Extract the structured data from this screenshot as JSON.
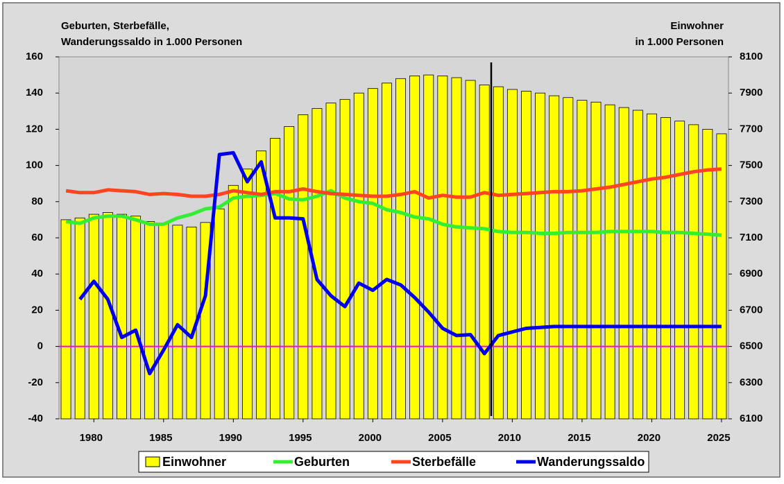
{
  "chart_data": {
    "type": "bar_line",
    "y_label": [
      "Geburten, Sterbefälle,",
      "Wanderungssaldo in 1.000 Personen"
    ],
    "y2_label": [
      "Einwohner",
      "in 1.000 Personen"
    ],
    "x": [
      1978,
      1979,
      1980,
      1981,
      1982,
      1983,
      1984,
      1985,
      1986,
      1987,
      1988,
      1989,
      1990,
      1991,
      1992,
      1993,
      1994,
      1995,
      1996,
      1997,
      1998,
      1999,
      2000,
      2001,
      2002,
      2003,
      2004,
      2005,
      2006,
      2007,
      2008,
      2009,
      2010,
      2011,
      2012,
      2013,
      2014,
      2015,
      2016,
      2017,
      2018,
      2019,
      2020,
      2021,
      2022,
      2023,
      2024,
      2025
    ],
    "xlim": [
      1977.5,
      2025.5
    ],
    "xticks": [
      1980,
      1985,
      1990,
      1995,
      2000,
      2005,
      2010,
      2015,
      2020,
      2025
    ],
    "ylim": [
      -40,
      160
    ],
    "yticks": [
      -40,
      -20,
      0,
      20,
      40,
      60,
      80,
      100,
      120,
      140,
      160
    ],
    "y2lim": [
      6100,
      8100
    ],
    "y2ticks": [
      6100,
      6300,
      6500,
      6700,
      6900,
      7100,
      7300,
      7500,
      7700,
      7900,
      8100
    ],
    "series": [
      {
        "name": "Einwohner",
        "type": "bar",
        "axis": "y2",
        "color": "#ffff00",
        "values": [
          7200,
          7210,
          7230,
          7240,
          7230,
          7220,
          7190,
          7180,
          7170,
          7160,
          7185,
          7260,
          7390,
          7480,
          7580,
          7650,
          7715,
          7780,
          7815,
          7845,
          7865,
          7900,
          7925,
          7955,
          7980,
          7995,
          8000,
          7995,
          7985,
          7970,
          7945,
          7935,
          7920,
          7910,
          7900,
          7885,
          7875,
          7860,
          7850,
          7835,
          7820,
          7805,
          7785,
          7765,
          7745,
          7725,
          7700,
          7675
        ]
      },
      {
        "name": "Geburten",
        "type": "line",
        "color": "#33ee33",
        "values": [
          69,
          68,
          71,
          72,
          72,
          70,
          67.5,
          67.5,
          71,
          73,
          76,
          77,
          82,
          83,
          83.5,
          84.5,
          81.5,
          81,
          83,
          86,
          82,
          80,
          79,
          75.5,
          74,
          71.5,
          70.5,
          67.5,
          66,
          65.5,
          65,
          63.5,
          63,
          63,
          62.5,
          62.5,
          63,
          63,
          63,
          63.5,
          63.5,
          63.5,
          63.5,
          63,
          63,
          62.5,
          62,
          61.5
        ]
      },
      {
        "name": "Sterbefälle",
        "type": "line",
        "color": "#ff4422",
        "values": [
          86,
          85,
          85,
          86.5,
          86,
          85.5,
          84,
          84.5,
          84,
          83,
          83,
          84,
          86,
          85,
          84,
          85.5,
          85.5,
          87,
          85.5,
          84.5,
          84,
          83.5,
          83,
          83,
          84,
          85.5,
          82,
          83.5,
          82.5,
          82.5,
          85,
          83.5,
          84,
          84.5,
          85,
          85.5,
          85.5,
          86,
          87,
          88,
          89.5,
          91,
          92.5,
          93.5,
          95,
          96.5,
          97.5,
          98
        ]
      },
      {
        "name": "Wanderungssaldo",
        "type": "line",
        "color": "#0000ee",
        "values": [
          null,
          26,
          36,
          26,
          5,
          9,
          -15,
          -2,
          12,
          5,
          28,
          106,
          107,
          91,
          102,
          71,
          71,
          70.5,
          37,
          28,
          22,
          35,
          31,
          37,
          34,
          27,
          19,
          10,
          6,
          6.5,
          -4,
          6,
          8,
          10,
          10.5,
          11,
          11,
          11,
          11,
          11,
          11,
          11,
          11,
          11,
          11,
          11,
          11,
          11
        ]
      }
    ]
  }
}
